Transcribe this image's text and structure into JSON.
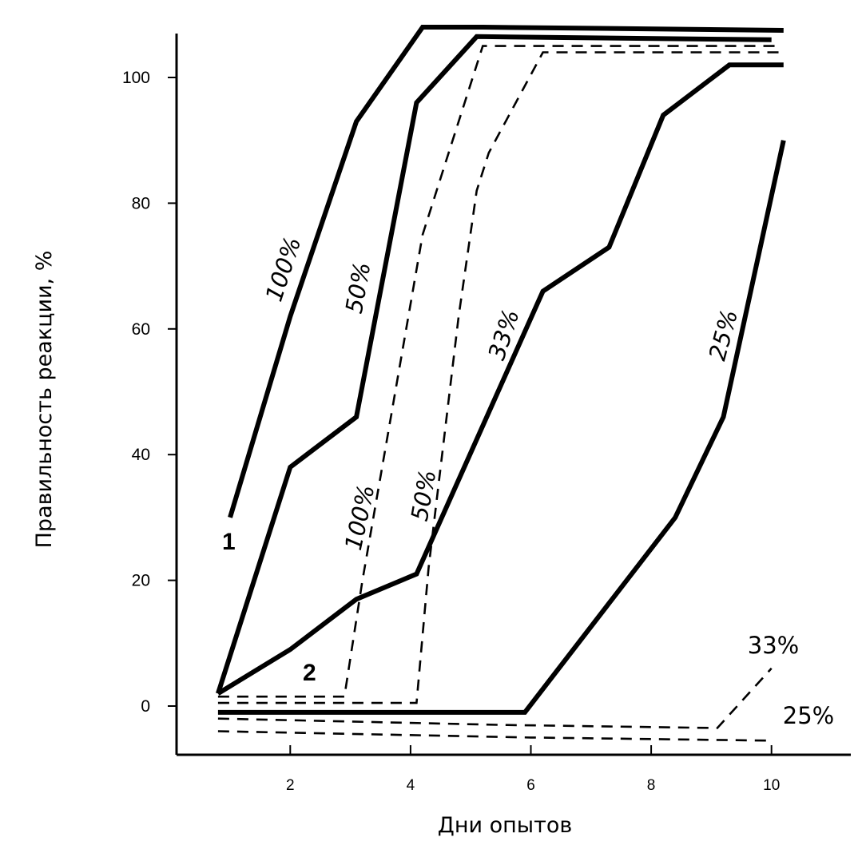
{
  "chart_data": {
    "type": "line",
    "title": "",
    "xlabel": "Дни опытов",
    "ylabel": "Правильность реакции, %",
    "xlim": [
      0.3,
      11.2
    ],
    "ylim": [
      -8,
      107
    ],
    "x_ticks": [
      "2",
      "4",
      "6",
      "8",
      "10"
    ],
    "y_ticks": [
      "0",
      "20",
      "40",
      "60",
      "80",
      "100"
    ],
    "grid": false,
    "groups": [
      "1",
      "2"
    ],
    "series": [
      {
        "group": "1",
        "label": "100%",
        "style": "solid",
        "x": [
          1,
          2,
          3.1,
          4.2,
          5.2,
          10.2
        ],
        "y": [
          30,
          62,
          93,
          108,
          108,
          107.5
        ]
      },
      {
        "group": "1",
        "label": "50%",
        "style": "solid",
        "x": [
          0.8,
          2,
          3.1,
          4.1,
          5.1,
          10
        ],
        "y": [
          2,
          38,
          46,
          96,
          106.5,
          106
        ]
      },
      {
        "group": "1",
        "label": "33%",
        "style": "solid",
        "x": [
          0.8,
          2,
          3.1,
          4.1,
          6.2,
          7.3,
          8.2,
          9.3,
          10.2
        ],
        "y": [
          2,
          9,
          17,
          21,
          66,
          73,
          94,
          102,
          102
        ]
      },
      {
        "group": "1",
        "label": "25%",
        "style": "solid",
        "x": [
          0.8,
          5.9,
          8.4,
          9.2,
          10.2
        ],
        "y": [
          -1,
          -1,
          30,
          46,
          90
        ]
      },
      {
        "group": "2",
        "label": "100%",
        "style": "dashed",
        "x": [
          0.8,
          2.9,
          3.2,
          4.2,
          4.7,
          5.2,
          10.1
        ],
        "y": [
          1.5,
          1.5,
          20,
          75,
          90,
          105,
          105
        ]
      },
      {
        "group": "2",
        "label": "50%",
        "style": "dashed",
        "x": [
          0.8,
          4.1,
          4.3,
          4.8,
          5.1,
          5.3,
          6.2,
          10.2
        ],
        "y": [
          0.5,
          0.5,
          22,
          62,
          82,
          88,
          104,
          104
        ]
      },
      {
        "group": "2",
        "label": "33%",
        "style": "dashed",
        "x": [
          0.8,
          5.5,
          9.1,
          10
        ],
        "y": [
          -2,
          -3,
          -3.5,
          6
        ]
      },
      {
        "group": "2",
        "label": "25%",
        "style": "dashed",
        "x": [
          0.8,
          6,
          10
        ],
        "y": [
          -4,
          -5,
          -5.5
        ]
      }
    ]
  }
}
